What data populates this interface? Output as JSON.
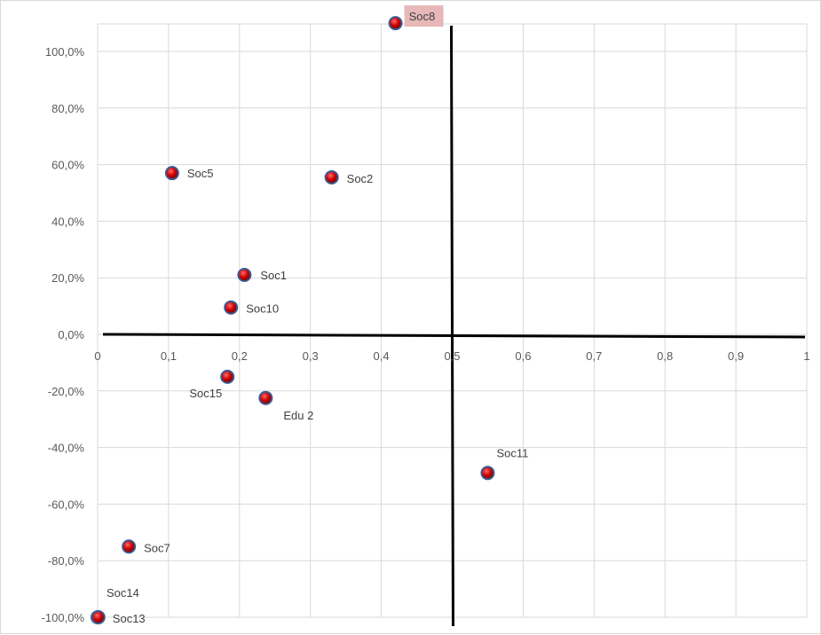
{
  "chart_data": {
    "type": "scatter",
    "title": "",
    "xlabel": "",
    "ylabel": "",
    "xlim": [
      0,
      1
    ],
    "ylim": [
      -100,
      110
    ],
    "x_ticks": [
      "0",
      "0,1",
      "0,2",
      "0,3",
      "0,4",
      "0,5",
      "0,6",
      "0,7",
      "0,8",
      "0,9",
      "1"
    ],
    "y_ticks": [
      "100,0%",
      "80,0%",
      "60,0%",
      "40,0%",
      "20,0%",
      "0,0%",
      "-20,0%",
      "-40,0%",
      "-60,0%",
      "-80,0%",
      "-100,0%"
    ],
    "grid": true,
    "reference_lines": {
      "x": 0.5,
      "y": 0
    },
    "highlighted_label": "Soc8",
    "colors": {
      "point_fill": "#cc0000",
      "point_ring": "#3b5b92",
      "highlight_bg": "#e6b8b7",
      "grid": "#d9d9d9",
      "axis": "#000000"
    },
    "points": [
      {
        "label": "Soc8",
        "x": 0.42,
        "y": 110
      },
      {
        "label": "Soc5",
        "x": 0.105,
        "y": 57
      },
      {
        "label": "Soc2",
        "x": 0.33,
        "y": 55.5
      },
      {
        "label": "Soc1",
        "x": 0.207,
        "y": 21
      },
      {
        "label": "Soc10",
        "x": 0.188,
        "y": 9.5
      },
      {
        "label": "Soc15",
        "x": 0.183,
        "y": -15
      },
      {
        "label": "Edu 2",
        "x": 0.237,
        "y": -22.5
      },
      {
        "label": "Soc11",
        "x": 0.55,
        "y": -49
      },
      {
        "label": "Soc7",
        "x": 0.044,
        "y": -75
      },
      {
        "label": "Soc14",
        "x": 0.0,
        "y": -100
      },
      {
        "label": "Soc13",
        "x": 0.001,
        "y": -100
      }
    ]
  }
}
